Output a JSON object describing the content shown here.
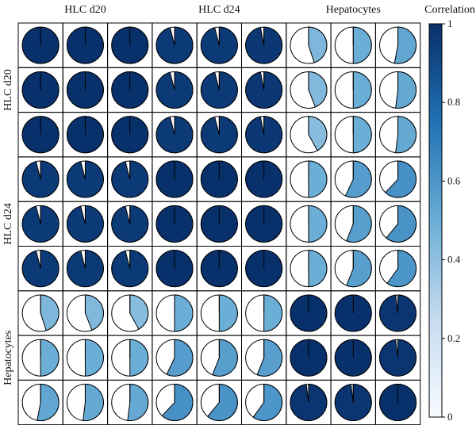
{
  "chart_data": {
    "type": "heatmap",
    "subtype": "pie-correlogram",
    "groups": [
      "HLC d20",
      "HLC d24",
      "Hepatocytes"
    ],
    "samples_per_group": 3,
    "values": [
      [
        1.0,
        1.0,
        1.0,
        0.96,
        0.96,
        0.97,
        0.45,
        0.5,
        0.53
      ],
      [
        1.0,
        1.0,
        1.0,
        0.96,
        0.96,
        0.97,
        0.44,
        0.5,
        0.52
      ],
      [
        1.0,
        1.0,
        1.0,
        0.96,
        0.96,
        0.97,
        0.42,
        0.5,
        0.52
      ],
      [
        0.96,
        0.96,
        0.96,
        1.0,
        1.0,
        1.0,
        0.5,
        0.57,
        0.62
      ],
      [
        0.96,
        0.96,
        0.96,
        1.0,
        1.0,
        1.0,
        0.5,
        0.56,
        0.61
      ],
      [
        0.96,
        0.96,
        0.96,
        1.0,
        1.0,
        1.0,
        0.5,
        0.56,
        0.6
      ],
      [
        0.45,
        0.44,
        0.42,
        0.5,
        0.5,
        0.5,
        1.0,
        1.0,
        0.98
      ],
      [
        0.5,
        0.5,
        0.5,
        0.57,
        0.56,
        0.56,
        1.0,
        1.0,
        0.98
      ],
      [
        0.53,
        0.52,
        0.52,
        0.62,
        0.61,
        0.6,
        0.98,
        0.98,
        1.0
      ]
    ],
    "colorbar": {
      "title": "Correlation",
      "range": [
        0,
        1
      ],
      "ticks": [
        "1",
        "0.8",
        "0.6",
        "0.4",
        "0.2",
        "0"
      ],
      "colors": [
        "#f7fbff",
        "#c6dbef",
        "#6baed6",
        "#2171b5",
        "#08306b"
      ]
    }
  }
}
